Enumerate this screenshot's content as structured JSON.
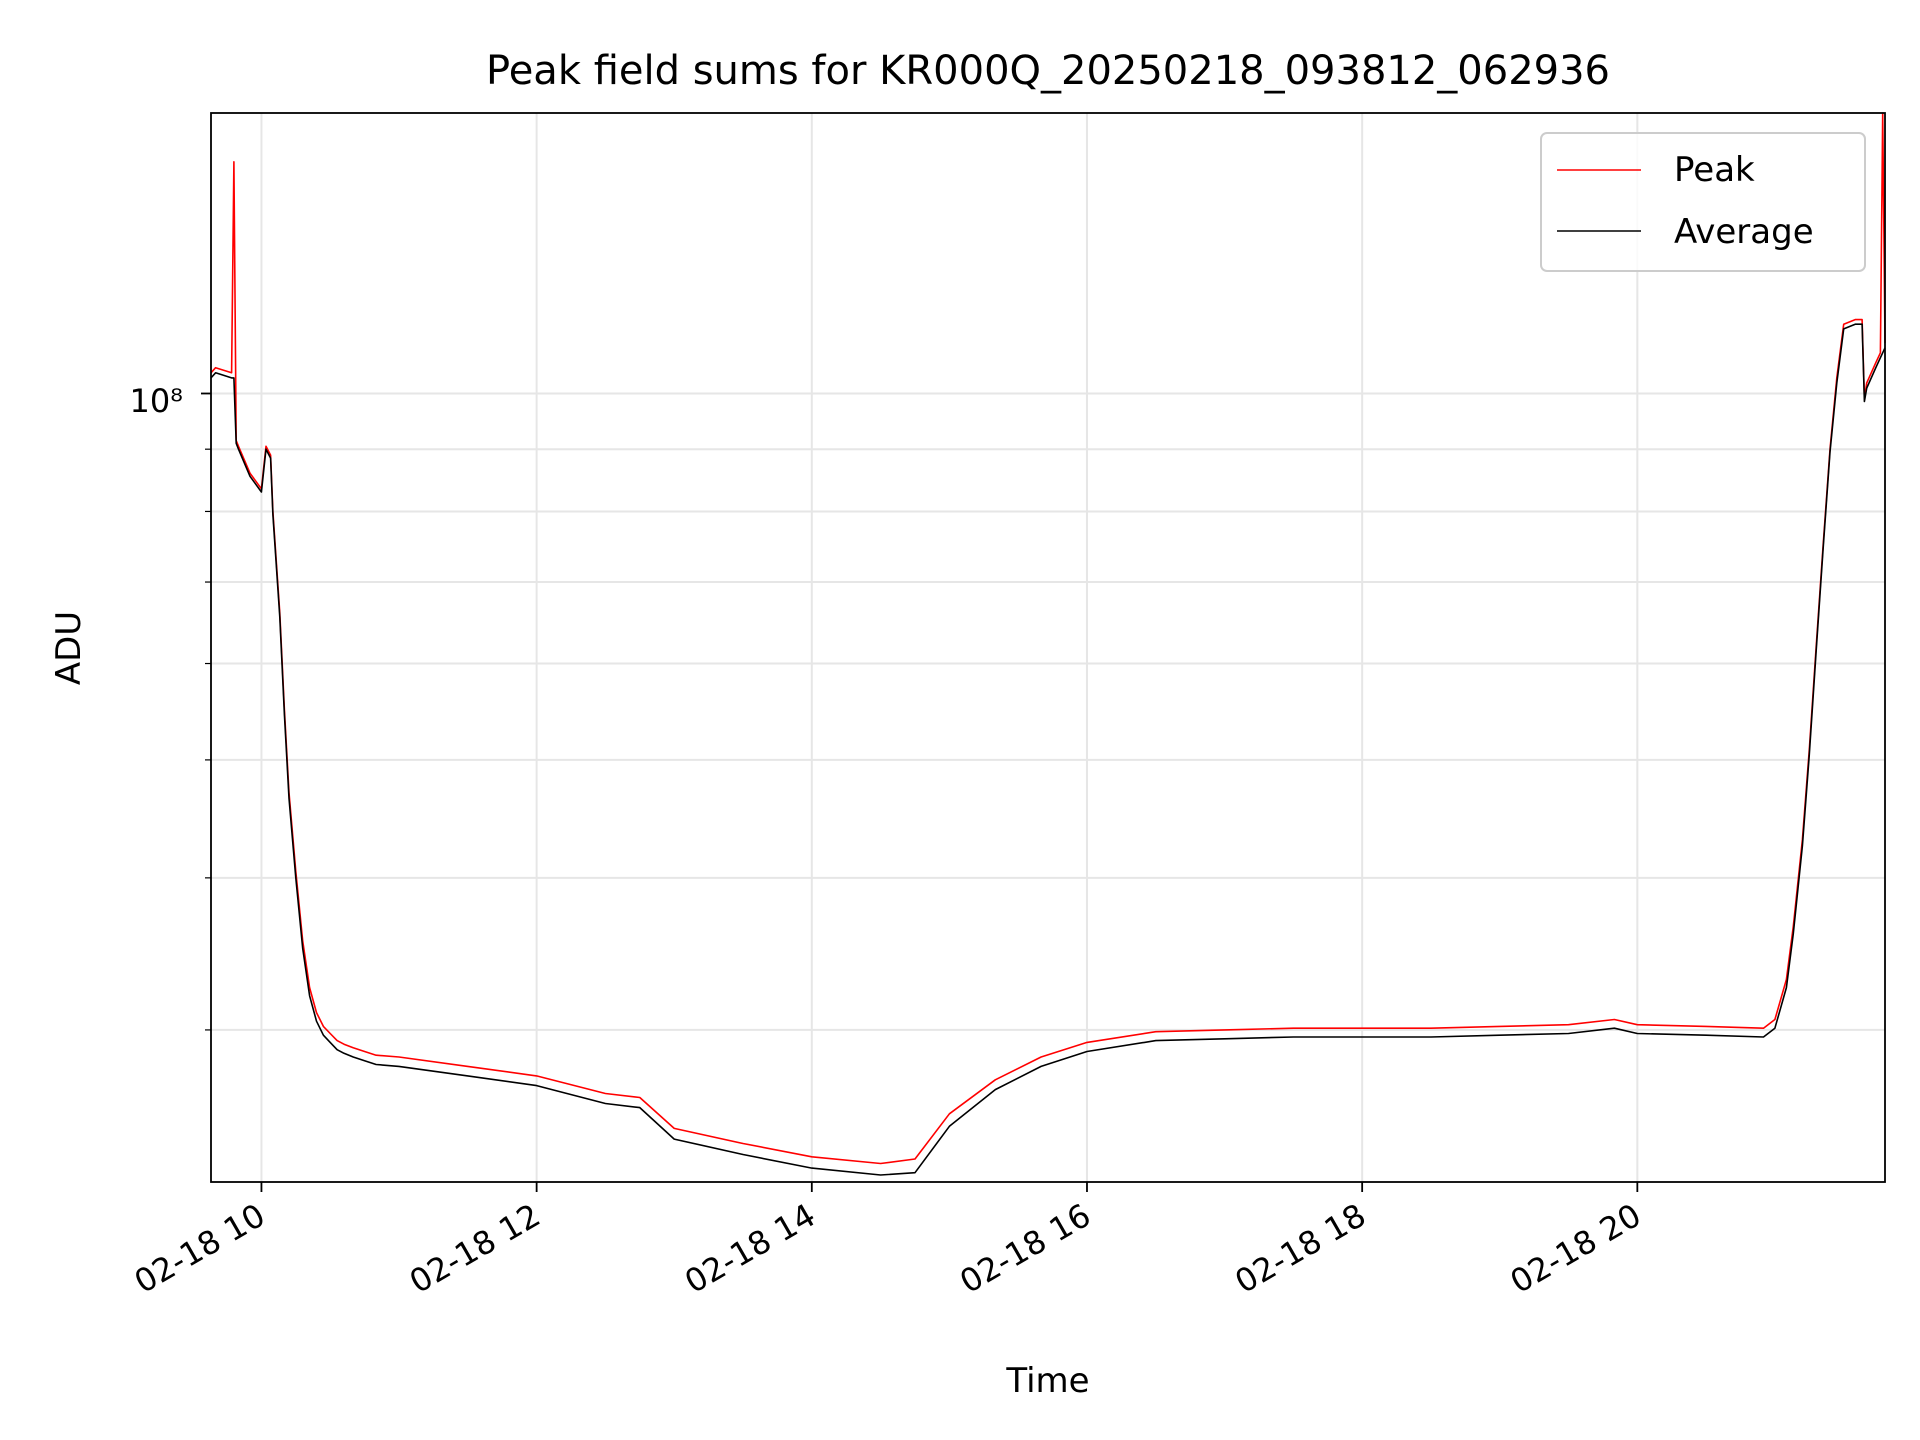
{
  "chart_data": {
    "type": "line",
    "title": "Peak field sums for KR000Q_20250218_093812_062936",
    "xlabel": "Time",
    "ylabel": "ADU",
    "y_scale": "log",
    "grid": true,
    "legend_position": "upper-right",
    "x_ticks": [
      "02-18 10",
      "02-18 12",
      "02-18 14",
      "02-18 16",
      "02-18 18",
      "02-18 20"
    ],
    "y_tick_label": "10⁸",
    "xlim": [
      "2025-02-18 09:38",
      "2025-02-18 21:48"
    ],
    "ylim": [
      22500000,
      170000000
    ],
    "series": [
      {
        "name": "Peak",
        "color": "#ff0000",
        "x": [
          "2025-02-18 09:38",
          "2025-02-18 09:40",
          "2025-02-18 09:47",
          "2025-02-18 09:48",
          "2025-02-18 09:49",
          "2025-02-18 09:50",
          "2025-02-18 09:55",
          "2025-02-18 10:00",
          "2025-02-18 10:02",
          "2025-02-18 10:04",
          "2025-02-18 10:05",
          "2025-02-18 10:08",
          "2025-02-18 10:10",
          "2025-02-18 10:12",
          "2025-02-18 10:15",
          "2025-02-18 10:18",
          "2025-02-18 10:21",
          "2025-02-18 10:24",
          "2025-02-18 10:27",
          "2025-02-18 10:30",
          "2025-02-18 10:33",
          "2025-02-18 10:36",
          "2025-02-18 10:40",
          "2025-02-18 10:45",
          "2025-02-18 10:50",
          "2025-02-18 11:00",
          "2025-02-18 11:30",
          "2025-02-18 12:00",
          "2025-02-18 12:30",
          "2025-02-18 12:45",
          "2025-02-18 13:00",
          "2025-02-18 13:30",
          "2025-02-18 14:00",
          "2025-02-18 14:30",
          "2025-02-18 14:45",
          "2025-02-18 15:00",
          "2025-02-18 15:20",
          "2025-02-18 15:40",
          "2025-02-18 16:00",
          "2025-02-18 16:30",
          "2025-02-18 17:00",
          "2025-02-18 17:30",
          "2025-02-18 18:00",
          "2025-02-18 18:30",
          "2025-02-18 19:00",
          "2025-02-18 19:30",
          "2025-02-18 19:50",
          "2025-02-18 20:00",
          "2025-02-18 20:30",
          "2025-02-18 20:55",
          "2025-02-18 21:00",
          "2025-02-18 21:05",
          "2025-02-18 21:08",
          "2025-02-18 21:12",
          "2025-02-18 21:15",
          "2025-02-18 21:18",
          "2025-02-18 21:21",
          "2025-02-18 21:24",
          "2025-02-18 21:27",
          "2025-02-18 21:30",
          "2025-02-18 21:35",
          "2025-02-18 21:38",
          "2025-02-18 21:39",
          "2025-02-18 21:40",
          "2025-02-18 21:44",
          "2025-02-18 21:46",
          "2025-02-18 21:47",
          "2025-02-18 21:48"
        ],
        "y": [
          104000000,
          105000000,
          104000000,
          155000000,
          91500000,
          90500000,
          86000000,
          83500000,
          90500000,
          89000000,
          80000000,
          66000000,
          55000000,
          47000000,
          40500000,
          35500000,
          32500000,
          31000000,
          30200000,
          29800000,
          29400000,
          29200000,
          29000000,
          28800000,
          28600000,
          28500000,
          28000000,
          27500000,
          26600000,
          26400000,
          24900000,
          24200000,
          23600000,
          23300000,
          23500000,
          25600000,
          27300000,
          28500000,
          29300000,
          29900000,
          30000000,
          30100000,
          30100000,
          30100000,
          30200000,
          30300000,
          30600000,
          30300000,
          30200000,
          30100000,
          30600000,
          33000000,
          36500000,
          43000000,
          51000000,
          62000000,
          75000000,
          90000000,
          103000000,
          114000000,
          115000000,
          115000000,
          99000000,
          102000000,
          106000000,
          108000000,
          170000000,
          110000000
        ]
      },
      {
        "name": "Average",
        "color": "#000000",
        "x": [
          "2025-02-18 09:38",
          "2025-02-18 09:40",
          "2025-02-18 09:47",
          "2025-02-18 09:48",
          "2025-02-18 09:49",
          "2025-02-18 09:50",
          "2025-02-18 09:55",
          "2025-02-18 10:00",
          "2025-02-18 10:02",
          "2025-02-18 10:04",
          "2025-02-18 10:05",
          "2025-02-18 10:08",
          "2025-02-18 10:10",
          "2025-02-18 10:12",
          "2025-02-18 10:15",
          "2025-02-18 10:18",
          "2025-02-18 10:21",
          "2025-02-18 10:24",
          "2025-02-18 10:27",
          "2025-02-18 10:30",
          "2025-02-18 10:33",
          "2025-02-18 10:36",
          "2025-02-18 10:40",
          "2025-02-18 10:45",
          "2025-02-18 10:50",
          "2025-02-18 11:00",
          "2025-02-18 11:30",
          "2025-02-18 12:00",
          "2025-02-18 12:30",
          "2025-02-18 12:45",
          "2025-02-18 13:00",
          "2025-02-18 13:30",
          "2025-02-18 14:00",
          "2025-02-18 14:30",
          "2025-02-18 14:45",
          "2025-02-18 15:00",
          "2025-02-18 15:20",
          "2025-02-18 15:40",
          "2025-02-18 16:00",
          "2025-02-18 16:30",
          "2025-02-18 17:00",
          "2025-02-18 17:30",
          "2025-02-18 18:00",
          "2025-02-18 18:30",
          "2025-02-18 19:00",
          "2025-02-18 19:30",
          "2025-02-18 19:50",
          "2025-02-18 20:00",
          "2025-02-18 20:30",
          "2025-02-18 20:55",
          "2025-02-18 21:00",
          "2025-02-18 21:05",
          "2025-02-18 21:08",
          "2025-02-18 21:12",
          "2025-02-18 21:15",
          "2025-02-18 21:18",
          "2025-02-18 21:21",
          "2025-02-18 21:24",
          "2025-02-18 21:27",
          "2025-02-18 21:30",
          "2025-02-18 21:35",
          "2025-02-18 21:38",
          "2025-02-18 21:39",
          "2025-02-18 21:40",
          "2025-02-18 21:44",
          "2025-02-18 21:46",
          "2025-02-18 21:47",
          "2025-02-18 21:48"
        ],
        "y": [
          103000000,
          104000000,
          103000000,
          103000000,
          91000000,
          90000000,
          85500000,
          83000000,
          90000000,
          88500000,
          79500000,
          65500000,
          54500000,
          46500000,
          40000000,
          35000000,
          32000000,
          30500000,
          29700000,
          29300000,
          28900000,
          28700000,
          28500000,
          28300000,
          28100000,
          28000000,
          27500000,
          27000000,
          26100000,
          25900000,
          24400000,
          23700000,
          23100000,
          22800000,
          22900000,
          25000000,
          26800000,
          28000000,
          28800000,
          29400000,
          29500000,
          29600000,
          29600000,
          29600000,
          29700000,
          29800000,
          30100000,
          29800000,
          29700000,
          29600000,
          30100000,
          32500000,
          36000000,
          42500000,
          50500000,
          61500000,
          74500000,
          89500000,
          102000000,
          113000000,
          114000000,
          114000000,
          98500000,
          101000000,
          105000000,
          107000000,
          108000000,
          109000000
        ]
      }
    ]
  }
}
